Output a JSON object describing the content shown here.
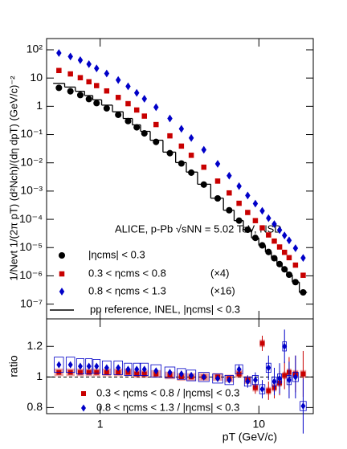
{
  "chart_data": [
    {
      "type": "scatter",
      "ylabel": "1/Nevt 1/(2π pT) (d²Nch)/(dη dpT) (GeV/c)⁻²",
      "annotation": "ALICE, p-Pb √sNN = 5.02 TeV, NSD",
      "log_x": true,
      "log_y": true,
      "xlim": [
        0.46,
        22
      ],
      "ylim": [
        3e-08,
        250
      ],
      "yticks": [
        {
          "value": 100,
          "label": "10²"
        },
        10,
        1,
        {
          "value": 0.1,
          "label": "10⁻¹"
        },
        {
          "value": 0.01,
          "label": "10⁻²"
        },
        {
          "value": 0.001,
          "label": "10⁻³"
        },
        {
          "value": 0.0001,
          "label": "10⁻⁴"
        },
        {
          "value": 1e-05,
          "label": "10⁻⁵"
        },
        {
          "value": 1e-06,
          "label": "10⁻⁶"
        },
        {
          "value": 1e-07,
          "label": "10⁻⁷"
        }
      ],
      "x": [
        0.55,
        0.65,
        0.75,
        0.85,
        0.95,
        1.1,
        1.3,
        1.5,
        1.7,
        1.9,
        2.25,
        2.75,
        3.25,
        3.75,
        4.5,
        5.5,
        6.5,
        7.5,
        8.5,
        9.5,
        10.5,
        11.5,
        12.5,
        13.5,
        14.5,
        15.5,
        17,
        19
      ],
      "series": [
        {
          "name": "|ηcms| < 0.3",
          "color": "#000000",
          "marker": "circle",
          "values": [
            4.5,
            3.4,
            2.5,
            1.8,
            1.3,
            0.85,
            0.5,
            0.3,
            0.18,
            0.11,
            0.055,
            0.022,
            0.0095,
            0.0045,
            0.0017,
            0.00055,
            0.00021,
            9e-05,
            4.3e-05,
            2.2e-05,
            1.2e-05,
            7e-06,
            4.2e-06,
            2.6e-06,
            1.7e-06,
            1.1e-06,
            6e-07,
            2.6e-07
          ]
        },
        {
          "name": "0.3 < ηcms < 0.8",
          "scale_label": "(×4)",
          "color": "#c80000",
          "marker": "square",
          "values": [
            18.5,
            14,
            10.3,
            7.4,
            5.4,
            3.5,
            2.06,
            1.24,
            0.74,
            0.45,
            0.226,
            0.09,
            0.039,
            0.0185,
            0.007,
            0.00226,
            0.00086,
            0.00037,
            0.000175,
            9e-05,
            5e-05,
            2.8e-05,
            1.7e-05,
            1.05e-05,
            6.8e-06,
            4.4e-06,
            2.4e-06,
            1.05e-06
          ]
        },
        {
          "name": "0.8 < ηcms < 1.3",
          "scale_label": "(×16)",
          "color": "#0000c8",
          "marker": "diamond",
          "values": [
            77,
            58,
            43,
            31,
            22,
            14.5,
            8.5,
            5.1,
            3.0,
            1.85,
            0.93,
            0.37,
            0.16,
            0.076,
            0.029,
            0.0092,
            0.0035,
            0.0015,
            0.0007,
            0.00036,
            0.0002,
            0.00011,
            6.8e-05,
            4.2e-05,
            2.7e-05,
            1.8e-05,
            9.5e-06,
            4.3e-06
          ]
        },
        {
          "name": "pp reference, INEL, |ηcms| < 0.3",
          "color": "#000000",
          "style": "step",
          "values": [
            6.5,
            4.8,
            3.4,
            2.4,
            1.7,
            1.1,
            0.64,
            0.37,
            0.22,
            0.13,
            0.063,
            0.024,
            0.0102,
            0.0047,
            0.00175,
            0.00056,
            0.00021,
            9e-05,
            4.3e-05,
            2.2e-05,
            1.2e-05,
            7e-06,
            4.2e-06,
            2.6e-06,
            1.7e-06,
            1.1e-06,
            6e-07,
            2.6e-07
          ]
        }
      ]
    },
    {
      "type": "scatter",
      "xlabel": "pT (GeV/c)",
      "ylabel": "ratio",
      "log_x": true,
      "log_y": false,
      "xlim": [
        0.46,
        22
      ],
      "ylim": [
        0.76,
        1.38
      ],
      "xticks": [
        1,
        10
      ],
      "yticks": [
        0.8,
        1,
        1.2
      ],
      "ref_line": 1,
      "x": [
        0.55,
        0.65,
        0.75,
        0.85,
        0.95,
        1.1,
        1.3,
        1.5,
        1.7,
        1.9,
        2.25,
        2.75,
        3.25,
        3.75,
        4.5,
        5.5,
        6.5,
        7.5,
        8.5,
        9.5,
        10.5,
        11.5,
        12.5,
        13.5,
        14.5,
        15.5,
        17,
        19
      ],
      "series": [
        {
          "name": "0.3 < ηcms < 0.8 / |ηcms| < 0.3",
          "color": "#c80000",
          "marker": "square",
          "box": "filled",
          "values": [
            1.03,
            1.03,
            1.03,
            1.03,
            1.03,
            1.03,
            1.03,
            1.03,
            1.02,
            1.02,
            1.02,
            1.01,
            1.0,
            1.0,
            1.0,
            1.0,
            0.99,
            1.02,
            0.98,
            0.93,
            1.22,
            0.91,
            0.93,
            0.96,
            1.01,
            1.03,
            1.02,
            1.02
          ],
          "errors": [
            0.002,
            0.002,
            0.002,
            0.002,
            0.002,
            0.002,
            0.002,
            0.002,
            0.002,
            0.002,
            0.002,
            0.002,
            0.002,
            0.002,
            0.002,
            0.002,
            0.01,
            0.02,
            0.03,
            0.04,
            0.05,
            0.06,
            0.07,
            0.08,
            0.09,
            0.1,
            0.12,
            0.15
          ],
          "sys": [
            0.025,
            0.025,
            0.025,
            0.025,
            0.025,
            0.025,
            0.025,
            0.025,
            0.025,
            0.025,
            0.025,
            0.025,
            0.025,
            0.025,
            0.025,
            0.025,
            0.025,
            0.025,
            0.025,
            0.025,
            0.025,
            0.025,
            0.025,
            0.025,
            0.025,
            0.025,
            0.025,
            0.025
          ]
        },
        {
          "name": "0.8 < ηcms < 1.3 / |ηcms| < 0.3",
          "color": "#0000c8",
          "marker": "diamond",
          "box": "open",
          "values": [
            1.08,
            1.08,
            1.07,
            1.07,
            1.07,
            1.06,
            1.06,
            1.05,
            1.05,
            1.05,
            1.04,
            1.03,
            1.02,
            1.01,
            1.0,
            0.99,
            0.98,
            1.05,
            0.97,
            0.98,
            0.92,
            1.06,
            0.97,
            0.99,
            1.2,
            0.98,
            1.0,
            0.81
          ],
          "errors": [
            0.003,
            0.003,
            0.003,
            0.003,
            0.003,
            0.003,
            0.003,
            0.003,
            0.003,
            0.003,
            0.003,
            0.003,
            0.003,
            0.003,
            0.003,
            0.003,
            0.02,
            0.03,
            0.04,
            0.05,
            0.06,
            0.08,
            0.09,
            0.1,
            0.11,
            0.12,
            0.14,
            0.18
          ],
          "sys": [
            0.05,
            0.05,
            0.05,
            0.05,
            0.045,
            0.045,
            0.045,
            0.04,
            0.04,
            0.04,
            0.04,
            0.035,
            0.035,
            0.035,
            0.03,
            0.03,
            0.03,
            0.03,
            0.03,
            0.03,
            0.03,
            0.03,
            0.03,
            0.03,
            0.03,
            0.03,
            0.03,
            0.03
          ]
        }
      ]
    }
  ]
}
